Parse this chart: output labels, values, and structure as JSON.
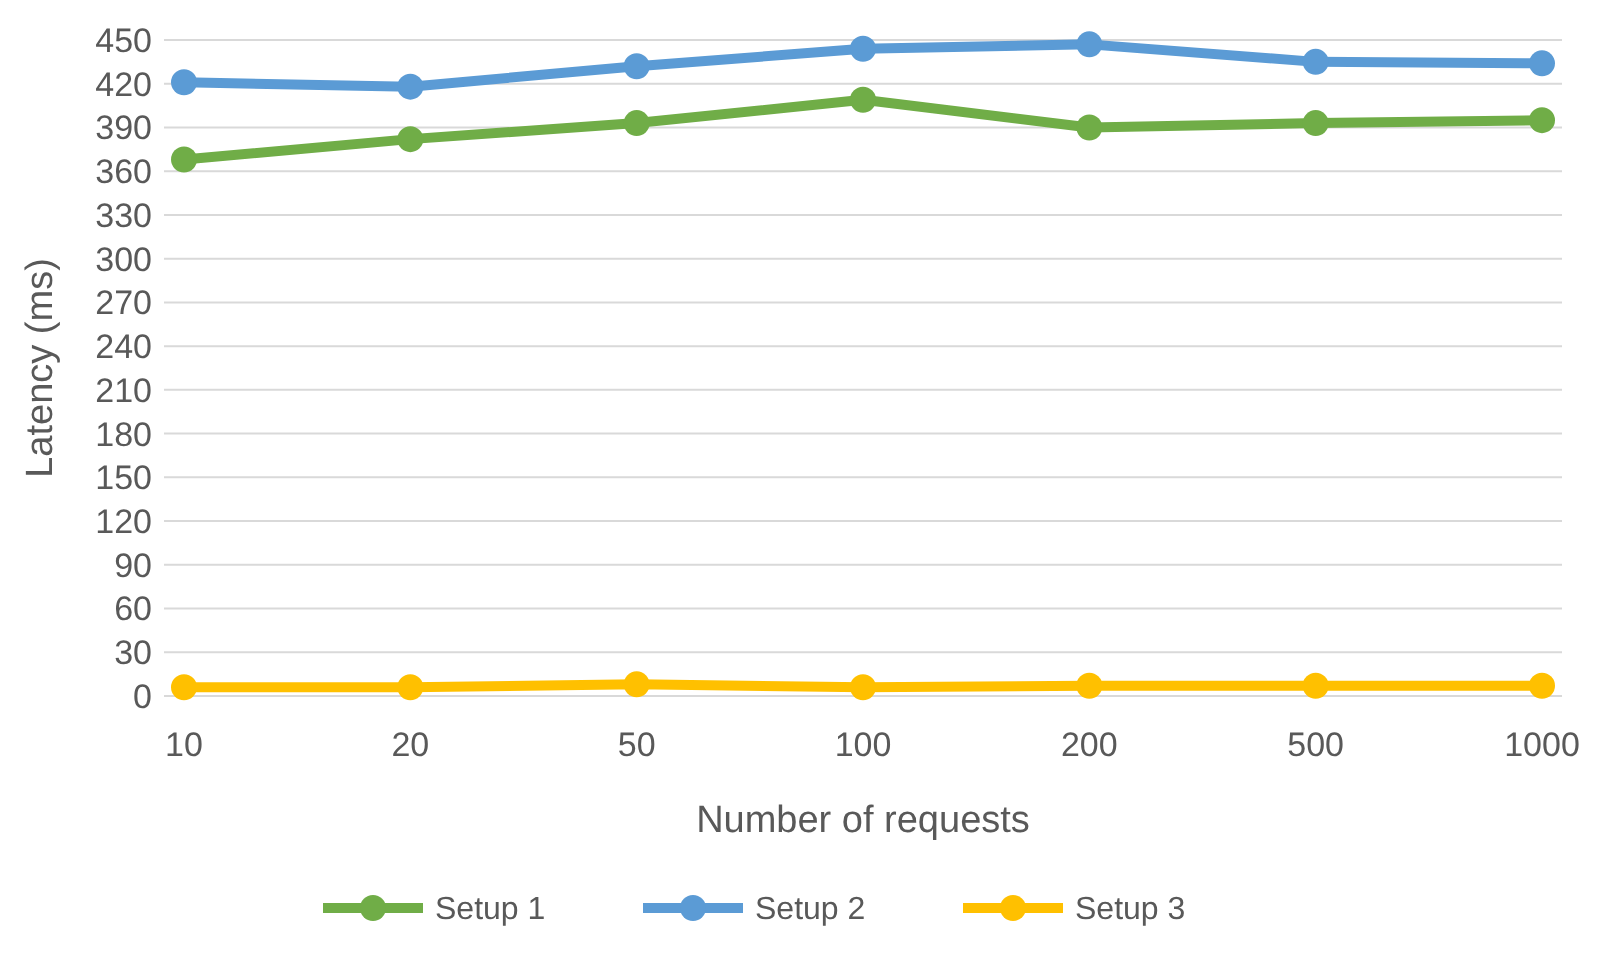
{
  "chart_data": {
    "type": "line",
    "xlabel": "Number of requests",
    "ylabel": "Latency (ms)",
    "categories": [
      "10",
      "20",
      "50",
      "100",
      "200",
      "500",
      "1000"
    ],
    "series": [
      {
        "name": "Setup 1",
        "color": "#70ad47",
        "values": [
          368,
          382,
          393,
          409,
          390,
          393,
          395
        ]
      },
      {
        "name": "Setup 2",
        "color": "#5b9bd5",
        "values": [
          421,
          418,
          432,
          444,
          447,
          435,
          434
        ]
      },
      {
        "name": "Setup 3",
        "color": "#ffc000",
        "values": [
          6,
          6,
          8,
          6,
          7,
          7,
          7
        ]
      }
    ],
    "ylim": [
      0,
      450
    ],
    "yticks": [
      0,
      30,
      60,
      90,
      120,
      150,
      180,
      210,
      240,
      270,
      300,
      330,
      360,
      390,
      420,
      450
    ],
    "grid": "y",
    "legend": "bottom",
    "marker": "circle",
    "line_style": "solid"
  }
}
